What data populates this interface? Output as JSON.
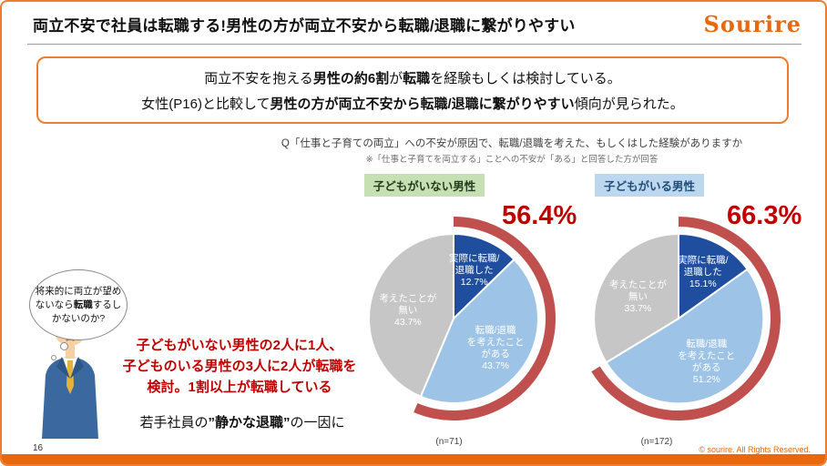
{
  "header": {
    "title": "両立不安で社員は転職する!男性の方が両立不安から転職/退職に繋がりやすい",
    "logo": "Sourire"
  },
  "colors": {
    "accent_orange": "#ED7D31",
    "bar_orange": "#E8680F",
    "emphasis_red": "#C00000",
    "arc_red": "#C0504D",
    "dark_blue": "#1F4E9F",
    "light_blue": "#9DC3E6",
    "gray": "#C6C6C6",
    "tag_green": "#C6E0B4",
    "tag_blue": "#BDD7EE"
  },
  "callout": {
    "line1": [
      {
        "t": "両立不安を抱える"
      },
      {
        "t": "男性の約6割",
        "b": true
      },
      {
        "t": "が"
      },
      {
        "t": "転職",
        "b": true
      },
      {
        "t": "を経験もしくは検討している。"
      }
    ],
    "line2": [
      {
        "t": "女性(P16)と比較して"
      },
      {
        "t": "男性の方が両立不安から転職/退職に繋がりやすい",
        "b": true
      },
      {
        "t": "傾向が見られた。"
      }
    ]
  },
  "question": {
    "main": "Q「仕事と子育ての両立」への不安が原因で、転職/退職を考えた、もしくはした経験がありますか",
    "note": "※「仕事と子育てを両立する」ことへの不安が「ある」と回答した方が回答"
  },
  "chart_data": [
    {
      "type": "pie",
      "title": "子どもがいない男性",
      "n_label": "(n=71)",
      "highlight_pct": 56.4,
      "highlight_label": "56.4%",
      "highlight_color": "#C0504D",
      "slices": [
        {
          "label": "実際に転職/退職した",
          "value": 12.7,
          "color": "#1F4E9F",
          "text_color": "#ffffff",
          "label_r": 0.63,
          "label_lines": [
            "実際に転職/",
            "退職した",
            "12.7%"
          ]
        },
        {
          "label": "転職/退職を考えたことがある",
          "value": 43.7,
          "color": "#9DC3E6",
          "text_color": "#ffffff",
          "label_r": 0.6,
          "label_lines": [
            "転職/退職",
            "を考えたこと",
            "がある",
            "43.7%"
          ]
        },
        {
          "label": "考えたことが無い",
          "value": 43.7,
          "color": "#C6C6C6",
          "text_color": "#ffffff",
          "label_r": 0.55,
          "label_lines": [
            "考えたことが",
            "無い",
            "43.7%"
          ]
        }
      ]
    },
    {
      "type": "pie",
      "title": "子どもがいる男性",
      "n_label": "(n=172)",
      "highlight_pct": 66.3,
      "highlight_label": "66.3%",
      "highlight_color": "#C0504D",
      "slices": [
        {
          "label": "実際に転職/退職した",
          "value": 15.1,
          "color": "#1F4E9F",
          "text_color": "#ffffff",
          "label_r": 0.63,
          "label_lines": [
            "実際に転職/",
            "退職した",
            "15.1%"
          ]
        },
        {
          "label": "転職/退職を考えたことがある",
          "value": 51.2,
          "color": "#9DC3E6",
          "text_color": "#ffffff",
          "label_r": 0.6,
          "label_lines": [
            "転職/退職",
            "を考えたこと",
            "がある",
            "51.2%"
          ]
        },
        {
          "label": "考えたことが無い",
          "value": 33.7,
          "color": "#C6C6C6",
          "text_color": "#ffffff",
          "label_r": 0.55,
          "label_lines": [
            "考えたことが",
            "無い",
            "33.7%"
          ]
        }
      ]
    }
  ],
  "bubble": {
    "lines": [
      [
        {
          "t": "将来的に両立が望め"
        }
      ],
      [
        {
          "t": "ないなら"
        },
        {
          "t": "転職",
          "b": true
        },
        {
          "t": "するし"
        }
      ],
      [
        {
          "t": "かないのか?"
        }
      ]
    ]
  },
  "message": {
    "lines": [
      "子どもがいない男性の2人に1人、",
      "子どものいる男性の3人に2人が転職を",
      "検討。1割以上が転職している"
    ]
  },
  "conclusion": [
    {
      "t": "若手社員の"
    },
    {
      "t": "”静かな退職”",
      "b": true
    },
    {
      "t": "の一因に"
    }
  ],
  "footer": {
    "page": "16",
    "copyright": "© sourire. All Rights Reserved."
  }
}
